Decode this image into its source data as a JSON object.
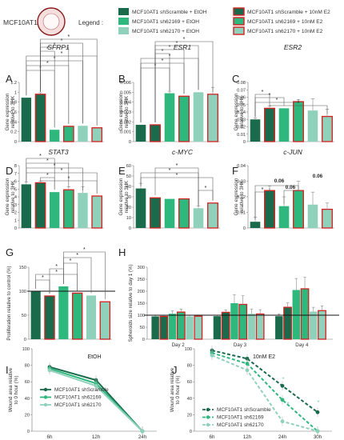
{
  "header": {
    "cell_line": "MCF10AT1",
    "legend_title": "Legend :",
    "legend_items": [
      {
        "label": "MCF10AT1 shScramble + EtOH",
        "fill": "#1a6b4c",
        "outlined": false
      },
      {
        "label": "MCF10AT1 sh62169 + EtOH",
        "fill": "#2eb87e",
        "outlined": false
      },
      {
        "label": "MCF10AT1 sh62170 + EtOH",
        "fill": "#8fd1bb",
        "outlined": false
      },
      {
        "label": "MCF10AT1 shScramble + 10nM E2",
        "fill": "#1a6b4c",
        "outlined": true
      },
      {
        "label": "MCF10AT1 sh62169 + 10nM E2",
        "fill": "#2eb87e",
        "outlined": true
      },
      {
        "label": "MCF10AT1 sh62170 + 10nM E2",
        "fill": "#8fd1bb",
        "outlined": true
      }
    ]
  },
  "colors": {
    "dark": "#1a6b4c",
    "mid": "#2eb87e",
    "light": "#8fd1bb",
    "outline": "#d42020"
  },
  "chart_data": [
    {
      "type": "bar",
      "panel": "A",
      "title": "SFRP1",
      "ylabel": "Gene expression\nrelative to 3HK",
      "ylim": [
        0,
        1.2
      ],
      "yticks": [
        "0",
        "0.2",
        "0.4",
        "0.6",
        "0.8",
        "1",
        "1.2"
      ],
      "values": [
        0.89,
        0.96,
        0.24,
        0.31,
        0.32,
        0.28
      ],
      "errors": [
        0,
        0.03,
        0,
        0,
        0,
        0
      ]
    },
    {
      "type": "bar",
      "panel": "B",
      "title": "ESR1",
      "ylabel": "Gene expression\nrelative to 3HK",
      "ylim": [
        0,
        0.006
      ],
      "yticks": [
        "0",
        "0.001",
        "0.002",
        "0.003",
        "0.004",
        "0.005",
        "0.006"
      ],
      "values": [
        0.0017,
        0.0017,
        0.0049,
        0.0046,
        0.005,
        0.0048
      ],
      "errors": [
        0,
        0,
        0.0002,
        0,
        0,
        0.0007
      ]
    },
    {
      "type": "bar",
      "panel": "C",
      "title": "ESR2",
      "ylabel": "Gene expression\nrelative to 3HK",
      "ylim": [
        0,
        0.08
      ],
      "yticks": [
        "0",
        "0.01",
        "0.02",
        "0.03",
        "0.04",
        "0.05",
        "0.06",
        "0.07",
        "0.08"
      ],
      "values": [
        0.03,
        0.045,
        0.045,
        0.054,
        0.042,
        0.034
      ],
      "errors": [
        0.002,
        0.003,
        0,
        0.003,
        0.016,
        0.01
      ]
    },
    {
      "type": "bar",
      "panel": "D",
      "title": "STAT3",
      "ylabel": "Gene expression\nrelative to 3HK",
      "ylim": [
        0,
        8
      ],
      "yticks": [
        "0",
        "1",
        "2",
        "3",
        "4",
        "5",
        "6",
        "7",
        "8"
      ],
      "values": [
        5.6,
        5.8,
        4.6,
        4.9,
        4.5,
        4.1
      ],
      "errors": [
        0.3,
        0.2,
        0,
        0.4,
        0.8,
        0
      ]
    },
    {
      "type": "bar",
      "panel": "E",
      "title": "c-MYC",
      "ylabel": "Gene expression\nrelative to 3HK",
      "ylim": [
        0,
        60
      ],
      "yticks": [
        "0",
        "10",
        "20",
        "30",
        "40",
        "50",
        "60"
      ],
      "values": [
        38,
        29,
        28,
        28,
        19,
        24
      ],
      "errors": [
        5,
        0,
        0,
        0,
        2,
        0
      ]
    },
    {
      "type": "bar",
      "panel": "F",
      "title": "c-JUN",
      "ylabel": "Gene expression\nrelative to 3HK",
      "ylim": [
        0,
        0.04
      ],
      "yticks": [
        "0",
        "0.01",
        "0.02",
        "0.03",
        "0.04"
      ],
      "values": [
        0.004,
        0.024,
        0.014,
        0.024,
        0.015,
        0.012
      ],
      "errors": [
        0.003,
        0.003,
        0.006,
        0.006,
        0.008,
        0.004
      ],
      "annotations": [
        "0.06",
        "0.06",
        "0.06"
      ]
    },
    {
      "type": "bar",
      "panel": "G",
      "title": "",
      "ylabel": "Proliferation relative to  control (%)",
      "ylim": [
        0,
        150
      ],
      "yticks": [
        "0",
        "50",
        "100",
        "150"
      ],
      "values": [
        100,
        90,
        110,
        96,
        91,
        78
      ],
      "errors": [
        0,
        0,
        0,
        0,
        0,
        0
      ]
    },
    {
      "type": "bar",
      "panel": "H",
      "title": "",
      "ylabel": "Spheroids size relative to day 1 (%)",
      "ylim": [
        0,
        300
      ],
      "yticks": [
        "0",
        "50",
        "100",
        "150",
        "200",
        "250",
        "300"
      ],
      "categories": [
        "Day 2",
        "Day 3",
        "Day 4"
      ],
      "series": [
        {
          "values": [
            95,
            96,
            96
          ],
          "errors": [
            4,
            4,
            10
          ]
        },
        {
          "values": [
            95,
            112,
            133
          ],
          "errors": [
            4,
            10,
            18
          ]
        },
        {
          "values": [
            106,
            150,
            205
          ],
          "errors": [
            12,
            36,
            48
          ]
        },
        {
          "values": [
            113,
            145,
            210
          ],
          "errors": [
            12,
            36,
            48
          ]
        },
        {
          "values": [
            95,
            106,
            115
          ],
          "errors": [
            5,
            20,
            18
          ]
        },
        {
          "values": [
            96,
            105,
            119
          ],
          "errors": [
            5,
            18,
            20
          ]
        }
      ],
      "reference_line": 100
    },
    {
      "type": "line",
      "panel": "I",
      "title": "EtOH",
      "ylabel": "Wound area relative\nto 0 hour (%)",
      "ylim": [
        0,
        100
      ],
      "yticks": [
        "0",
        "20",
        "40",
        "60",
        "80",
        "100"
      ],
      "x": [
        "6h",
        "12h",
        "24h"
      ],
      "series": [
        {
          "name": "MCF10AT1 shScramble",
          "values": [
            78,
            62,
            0
          ]
        },
        {
          "name": "MCF10AT1 sh62169",
          "values": [
            76,
            58,
            0
          ]
        },
        {
          "name": "MCF10AT1 sh62170",
          "values": [
            74,
            55,
            0
          ]
        }
      ]
    },
    {
      "type": "line",
      "panel": "J",
      "title": "10nM E2",
      "ylabel": "Wound area relative\nto 0 hour (%)",
      "ylim": [
        0,
        100
      ],
      "yticks": [
        "0",
        "20",
        "40",
        "60",
        "80",
        "100"
      ],
      "x": [
        "6h",
        "12h",
        "24h",
        "30h"
      ],
      "series": [
        {
          "name": "MCF10AT1 shScramble",
          "values": [
            98,
            88,
            55,
            23
          ]
        },
        {
          "name": "MCF10AT1 sh62169",
          "values": [
            95,
            82,
            38,
            0
          ]
        },
        {
          "name": "MCF10AT1 sh62170",
          "values": [
            92,
            74,
            12,
            0
          ]
        }
      ],
      "annotations": [
        "*",
        "*",
        "*"
      ]
    }
  ]
}
